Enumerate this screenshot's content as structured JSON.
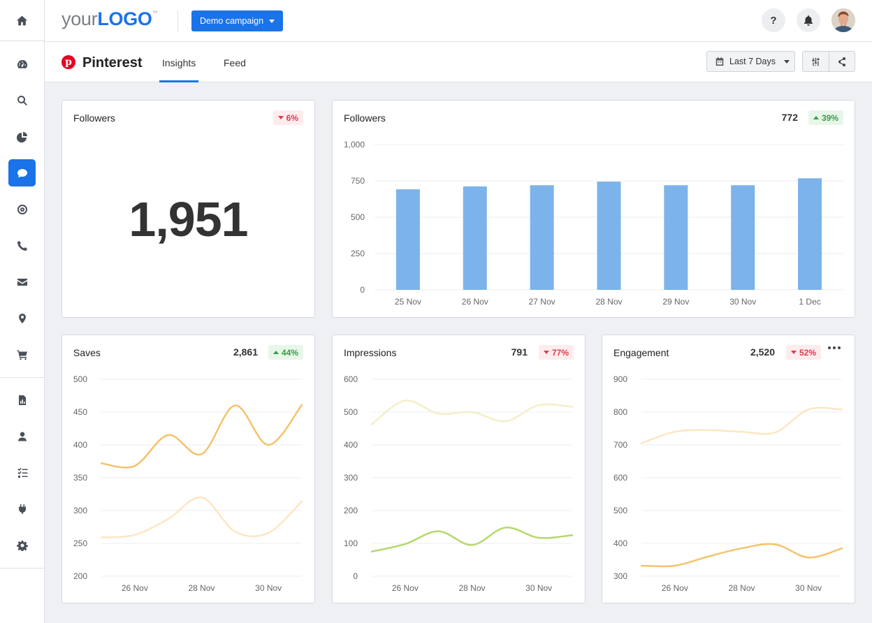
{
  "app": {
    "logo_part1": "your",
    "logo_part2": "LOGO",
    "logo_tm": "™",
    "campaign_label": "Demo campaign",
    "help_label": "?"
  },
  "sidebar": {
    "items": [
      {
        "icon": "dashboard-icon"
      },
      {
        "icon": "search-icon"
      },
      {
        "icon": "pie-chart-icon"
      },
      {
        "icon": "chat-icon",
        "active": true
      },
      {
        "icon": "target-icon"
      },
      {
        "icon": "phone-icon"
      },
      {
        "icon": "mail-icon"
      },
      {
        "icon": "location-pin-icon"
      },
      {
        "icon": "cart-icon"
      },
      {
        "icon": "report-icon"
      },
      {
        "icon": "user-icon"
      },
      {
        "icon": "task-list-icon"
      },
      {
        "icon": "plug-icon"
      },
      {
        "icon": "gear-icon"
      }
    ]
  },
  "subheader": {
    "platform": "Pinterest",
    "tabs": [
      {
        "label": "Insights",
        "active": true
      },
      {
        "label": "Feed"
      }
    ],
    "date_range": "Last 7 Days"
  },
  "cards": {
    "followers_total": {
      "title": "Followers",
      "value": "1,951",
      "change": "6%",
      "direction": "down"
    },
    "followers_chart": {
      "title": "Followers",
      "value": "772",
      "change": "39%",
      "direction": "up"
    },
    "saves": {
      "title": "Saves",
      "value": "2,861",
      "change": "44%",
      "direction": "up"
    },
    "impressions": {
      "title": "Impressions",
      "value": "791",
      "change": "77%",
      "direction": "down"
    },
    "engagement": {
      "title": "Engagement",
      "value": "2,520",
      "change": "52%",
      "direction": "down"
    }
  },
  "colors": {
    "accent": "#1a73e8",
    "bar": "#7cb3ea",
    "orange": "#f5c26b",
    "orange_light": "#fde6c3",
    "green": "#b5d86b",
    "yellow_light": "#f4efc6"
  },
  "chart_data": [
    {
      "id": "followers_chart",
      "type": "bar",
      "categories": [
        "25 Nov",
        "26 Nov",
        "27 Nov",
        "28 Nov",
        "29 Nov",
        "30 Nov",
        "1 Dec"
      ],
      "values": [
        692,
        712,
        720,
        745,
        720,
        720,
        768
      ],
      "yticks": [
        "0",
        "250",
        "500",
        "750",
        "1,000"
      ],
      "ylim": [
        0,
        1000
      ]
    },
    {
      "id": "saves",
      "type": "line",
      "x": [
        25,
        26,
        27,
        28,
        29,
        30,
        1
      ],
      "xticks": [
        "26 Nov",
        "28 Nov",
        "30 Nov"
      ],
      "yticks": [
        "200",
        "250",
        "300",
        "350",
        "400",
        "450",
        "500"
      ],
      "ylim": [
        200,
        500
      ],
      "series": [
        {
          "values": [
            372,
            368,
            415,
            386,
            460,
            400,
            461
          ],
          "color": "#f5c26b"
        },
        {
          "values": [
            259,
            263,
            287,
            320,
            268,
            266,
            314
          ],
          "color": "#fde6c3"
        }
      ]
    },
    {
      "id": "impressions",
      "type": "line",
      "x": [
        25,
        26,
        27,
        28,
        29,
        30,
        1
      ],
      "xticks": [
        "26 Nov",
        "28 Nov",
        "30 Nov"
      ],
      "yticks": [
        "0",
        "100",
        "200",
        "300",
        "400",
        "500",
        "600"
      ],
      "ylim": [
        0,
        600
      ],
      "series": [
        {
          "values": [
            463,
            535,
            495,
            500,
            472,
            521,
            516
          ],
          "color": "#f4efc6"
        },
        {
          "values": [
            75,
            98,
            137,
            95,
            148,
            117,
            125
          ],
          "color": "#b5d86b"
        }
      ]
    },
    {
      "id": "engagement",
      "type": "line",
      "x": [
        25,
        26,
        27,
        28,
        29,
        30,
        1
      ],
      "xticks": [
        "26 Nov",
        "28 Nov",
        "30 Nov"
      ],
      "yticks": [
        "300",
        "400",
        "500",
        "600",
        "700",
        "800",
        "900"
      ],
      "ylim": [
        300,
        900
      ],
      "series": [
        {
          "values": [
            705,
            740,
            745,
            740,
            738,
            808,
            808
          ],
          "color": "#fde6c3"
        },
        {
          "values": [
            332,
            332,
            360,
            385,
            397,
            357,
            385
          ],
          "color": "#f5c26b"
        }
      ]
    }
  ]
}
